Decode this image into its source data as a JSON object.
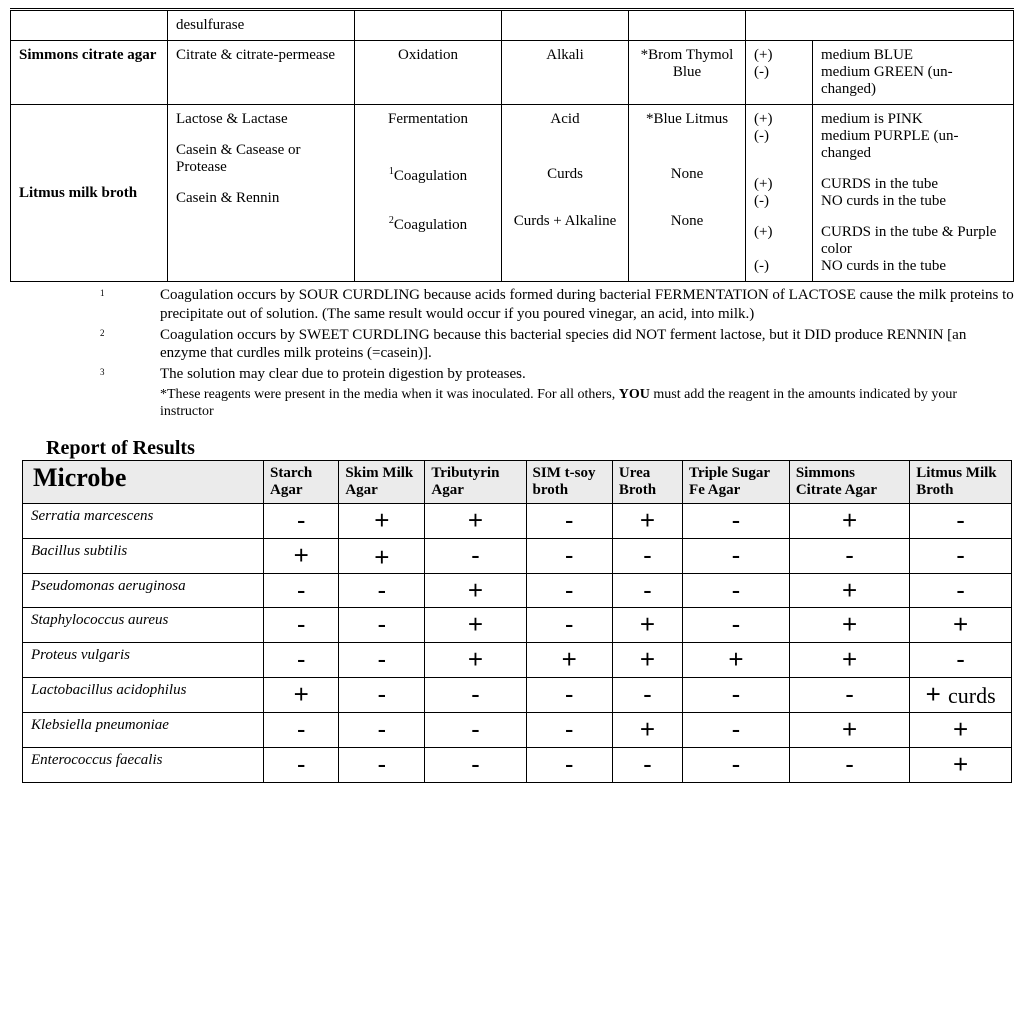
{
  "media_table": {
    "rows": [
      {
        "label": "",
        "c2": "desulfurase",
        "c3": "",
        "c4": "",
        "c5": "",
        "pm": []
      },
      {
        "label": "Simmons citrate agar",
        "c2": "Citrate & citrate-permease",
        "c3": "Oxidation",
        "c4": "Alkali",
        "c5": "*Brom Thymol Blue",
        "pm": [
          {
            "sign": "(+)",
            "txt": "medium BLUE"
          },
          {
            "sign": "(-)",
            "txt": "medium GREEN (un-changed)"
          }
        ]
      }
    ],
    "litmus": {
      "label": "Litmus milk broth",
      "blocks": [
        {
          "c2": "Lactose & Lactase",
          "c3": "Fermentation",
          "c4": "Acid",
          "c5": "*Blue Litmus",
          "pm": [
            {
              "sign": "(+)",
              "txt": "medium is PINK"
            },
            {
              "sign": "(-)",
              "txt": "medium PURPLE (un-changed"
            }
          ]
        },
        {
          "c2": "Casein & Casease or Protease",
          "c3_sup": "1",
          "c3": "Coagulation",
          "c4": "Curds",
          "c5": "None",
          "pm": [
            {
              "sign": "(+)",
              "txt": "CURDS in the tube"
            },
            {
              "sign": "(-)",
              "txt": "NO curds in the tube"
            }
          ]
        },
        {
          "c2": "Casein & Rennin",
          "c3_sup": "2",
          "c3": "Coagulation",
          "c4": "Curds + Alkaline",
          "c5": "None",
          "pm": [
            {
              "sign": "(+)",
              "txt": "CURDS in the tube & Purple color"
            },
            {
              "sign": "(-)",
              "txt": "NO curds in the tube"
            }
          ]
        }
      ]
    }
  },
  "footnotes": {
    "fn1_num": "1",
    "fn1": "Coagulation occurs by SOUR CURDLING because acids formed during bacterial FERMENTATION of LACTOSE cause the milk proteins to precipitate out of solution.  (The same result would occur if you poured vinegar, an acid, into milk.)",
    "fn2_num": "2",
    "fn2": "Coagulation occurs by SWEET CURDLING because this bacterial species did NOT ferment lactose, but it DID produce RENNIN [an enzyme that curdles milk proteins (=casein)].",
    "fn3_num": "3",
    "fn3": "The solution may clear due to protein digestion by proteases.",
    "note_pre": "*These reagents were present in the media when it was inoculated.  For all others, ",
    "note_bold": "YOU",
    "note_post": " must add the reagent in the amounts indicated by your instructor"
  },
  "report": {
    "title": "Report of Results",
    "columns": [
      "Microbe",
      "Starch Agar",
      "Skim Milk Agar",
      "Tributyrin Agar",
      "SIM t-soy broth",
      "Urea Broth",
      "Triple Sugar Fe Agar",
      "Simmons Citrate Agar",
      "Litmus Milk Broth"
    ],
    "rows": [
      {
        "sp": "Serratia marcescens",
        "v": [
          "-",
          "+",
          "+",
          "-",
          "+",
          "-",
          "+",
          "-"
        ]
      },
      {
        "sp": "Bacillus subtilis",
        "v": [
          "+",
          "+",
          "-",
          "-",
          "-",
          "-",
          "-",
          "-"
        ],
        "skim_low": true
      },
      {
        "sp": "Pseudomonas aeruginosa",
        "v": [
          "-",
          "-",
          "+",
          "-",
          "-",
          "-",
          "+",
          "-"
        ]
      },
      {
        "sp": "Staphylococcus aureus",
        "v": [
          "-",
          "-",
          "+",
          "-",
          "+",
          "-",
          "+",
          "+"
        ]
      },
      {
        "sp": "Proteus vulgaris",
        "v": [
          "-",
          "-",
          "+",
          "+",
          "+",
          "+",
          "+",
          "-"
        ]
      },
      {
        "sp": "Lactobacillus acidophilus",
        "v": [
          "+",
          "-",
          "-",
          "-",
          "-",
          "-",
          "-",
          "+ curds"
        ]
      },
      {
        "sp": "Klebsiella pneumoniae",
        "v": [
          "-",
          "-",
          "-",
          "-",
          "+",
          "-",
          "+",
          "+"
        ]
      },
      {
        "sp": "Enterococcus faecalis",
        "v": [
          "-",
          "-",
          "-",
          "-",
          "-",
          "-",
          "-",
          "+"
        ]
      }
    ]
  }
}
